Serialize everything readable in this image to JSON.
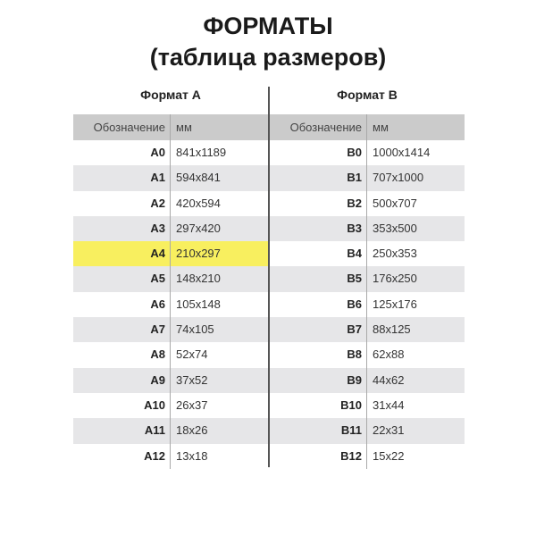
{
  "title_line1": "ФОРМАТЫ",
  "title_line2": "(таблица размеров)",
  "highlight_color": "#f8ef5f",
  "tables": [
    {
      "heading": "Формат А",
      "col_code": "Обозначение",
      "col_mm": "мм",
      "highlighted": "A4",
      "rows": [
        {
          "code": "A0",
          "mm": "841x1189"
        },
        {
          "code": "A1",
          "mm": "594x841"
        },
        {
          "code": "A2",
          "mm": "420x594"
        },
        {
          "code": "A3",
          "mm": "297x420"
        },
        {
          "code": "A4",
          "mm": "210x297"
        },
        {
          "code": "A5",
          "mm": "148x210"
        },
        {
          "code": "A6",
          "mm": "105x148"
        },
        {
          "code": "A7",
          "mm": "74x105"
        },
        {
          "code": "A8",
          "mm": "52x74"
        },
        {
          "code": "A9",
          "mm": "37x52"
        },
        {
          "code": "A10",
          "mm": "26x37"
        },
        {
          "code": "A11",
          "mm": "18x26"
        },
        {
          "code": "A12",
          "mm": "13x18"
        }
      ]
    },
    {
      "heading": "Формат В",
      "col_code": "Обозначение",
      "col_mm": "мм",
      "highlighted": "",
      "rows": [
        {
          "code": "B0",
          "mm": "1000x1414"
        },
        {
          "code": "B1",
          "mm": "707x1000"
        },
        {
          "code": "B2",
          "mm": "500x707"
        },
        {
          "code": "B3",
          "mm": "353x500"
        },
        {
          "code": "B4",
          "mm": "250x353"
        },
        {
          "code": "B5",
          "mm": "176x250"
        },
        {
          "code": "B6",
          "mm": "125x176"
        },
        {
          "code": "B7",
          "mm": "88x125"
        },
        {
          "code": "B8",
          "mm": "62x88"
        },
        {
          "code": "B9",
          "mm": "44x62"
        },
        {
          "code": "B10",
          "mm": "31x44"
        },
        {
          "code": "B11",
          "mm": "22x31"
        },
        {
          "code": "B12",
          "mm": "15x22"
        }
      ]
    }
  ]
}
